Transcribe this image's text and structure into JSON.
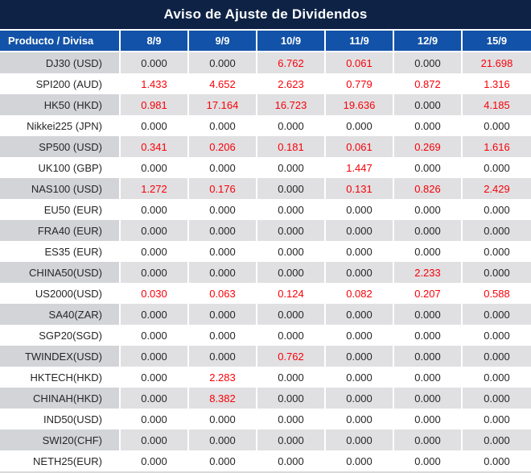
{
  "title": "Aviso de Ajuste de Dividendos",
  "colors": {
    "title_bg": "#0d2245",
    "header_bg": "#1252a8",
    "header_text": "#ffffff",
    "stripe_label_bg": "#d3d4d8",
    "stripe_cell_bg": "#e0e0e2",
    "white_row_bg": "#ffffff",
    "value_default": "#262626",
    "value_highlight": "#f80008",
    "grid_line": "#ffffff",
    "bottom_border": "#d9d9d9"
  },
  "chart_data": {
    "type": "table",
    "title": "Aviso de Ajuste de Dividendos",
    "columns": [
      "Producto / Divisa",
      "8/9",
      "9/9",
      "10/9",
      "11/9",
      "12/9",
      "15/9"
    ],
    "rows": [
      {
        "product": "DJ30 (USD)",
        "values": [
          "0.000",
          "0.000",
          "6.762",
          "0.061",
          "0.000",
          "21.698"
        ],
        "red": [
          false,
          false,
          true,
          true,
          false,
          true
        ]
      },
      {
        "product": "SPI200 (AUD)",
        "values": [
          "1.433",
          "4.652",
          "2.623",
          "0.779",
          "0.872",
          "1.316"
        ],
        "red": [
          true,
          true,
          true,
          true,
          true,
          true
        ]
      },
      {
        "product": "HK50 (HKD)",
        "values": [
          "0.981",
          "17.164",
          "16.723",
          "19.636",
          "0.000",
          "4.185"
        ],
        "red": [
          true,
          true,
          true,
          true,
          false,
          true
        ]
      },
      {
        "product": "Nikkei225 (JPN)",
        "values": [
          "0.000",
          "0.000",
          "0.000",
          "0.000",
          "0.000",
          "0.000"
        ],
        "red": [
          false,
          false,
          false,
          false,
          false,
          false
        ]
      },
      {
        "product": "SP500 (USD)",
        "values": [
          "0.341",
          "0.206",
          "0.181",
          "0.061",
          "0.269",
          "1.616"
        ],
        "red": [
          true,
          true,
          true,
          true,
          true,
          true
        ]
      },
      {
        "product": "UK100 (GBP)",
        "values": [
          "0.000",
          "0.000",
          "0.000",
          "1.447",
          "0.000",
          "0.000"
        ],
        "red": [
          false,
          false,
          false,
          true,
          false,
          false
        ]
      },
      {
        "product": "NAS100 (USD)",
        "values": [
          "1.272",
          "0.176",
          "0.000",
          "0.131",
          "0.826",
          "2.429"
        ],
        "red": [
          true,
          true,
          false,
          true,
          true,
          true
        ]
      },
      {
        "product": "EU50 (EUR)",
        "values": [
          "0.000",
          "0.000",
          "0.000",
          "0.000",
          "0.000",
          "0.000"
        ],
        "red": [
          false,
          false,
          false,
          false,
          false,
          false
        ]
      },
      {
        "product": "FRA40 (EUR)",
        "values": [
          "0.000",
          "0.000",
          "0.000",
          "0.000",
          "0.000",
          "0.000"
        ],
        "red": [
          false,
          false,
          false,
          false,
          false,
          false
        ]
      },
      {
        "product": "ES35 (EUR)",
        "values": [
          "0.000",
          "0.000",
          "0.000",
          "0.000",
          "0.000",
          "0.000"
        ],
        "red": [
          false,
          false,
          false,
          false,
          false,
          false
        ]
      },
      {
        "product": "CHINA50(USD)",
        "values": [
          "0.000",
          "0.000",
          "0.000",
          "0.000",
          "2.233",
          "0.000"
        ],
        "red": [
          false,
          false,
          false,
          false,
          true,
          false
        ]
      },
      {
        "product": "US2000(USD)",
        "values": [
          "0.030",
          "0.063",
          "0.124",
          "0.082",
          "0.207",
          "0.588"
        ],
        "red": [
          true,
          true,
          true,
          true,
          true,
          true
        ]
      },
      {
        "product": "SA40(ZAR)",
        "values": [
          "0.000",
          "0.000",
          "0.000",
          "0.000",
          "0.000",
          "0.000"
        ],
        "red": [
          false,
          false,
          false,
          false,
          false,
          false
        ]
      },
      {
        "product": "SGP20(SGD)",
        "values": [
          "0.000",
          "0.000",
          "0.000",
          "0.000",
          "0.000",
          "0.000"
        ],
        "red": [
          false,
          false,
          false,
          false,
          false,
          false
        ]
      },
      {
        "product": "TWINDEX(USD)",
        "values": [
          "0.000",
          "0.000",
          "0.762",
          "0.000",
          "0.000",
          "0.000"
        ],
        "red": [
          false,
          false,
          true,
          false,
          false,
          false
        ]
      },
      {
        "product": "HKTECH(HKD)",
        "values": [
          "0.000",
          "2.283",
          "0.000",
          "0.000",
          "0.000",
          "0.000"
        ],
        "red": [
          false,
          true,
          false,
          false,
          false,
          false
        ]
      },
      {
        "product": "CHINAH(HKD)",
        "values": [
          "0.000",
          "8.382",
          "0.000",
          "0.000",
          "0.000",
          "0.000"
        ],
        "red": [
          false,
          true,
          false,
          false,
          false,
          false
        ]
      },
      {
        "product": "IND50(USD)",
        "values": [
          "0.000",
          "0.000",
          "0.000",
          "0.000",
          "0.000",
          "0.000"
        ],
        "red": [
          false,
          false,
          false,
          false,
          false,
          false
        ]
      },
      {
        "product": "SWI20(CHF)",
        "values": [
          "0.000",
          "0.000",
          "0.000",
          "0.000",
          "0.000",
          "0.000"
        ],
        "red": [
          false,
          false,
          false,
          false,
          false,
          false
        ]
      },
      {
        "product": "NETH25(EUR)",
        "values": [
          "0.000",
          "0.000",
          "0.000",
          "0.000",
          "0.000",
          "0.000"
        ],
        "red": [
          false,
          false,
          false,
          false,
          false,
          false
        ]
      }
    ]
  }
}
